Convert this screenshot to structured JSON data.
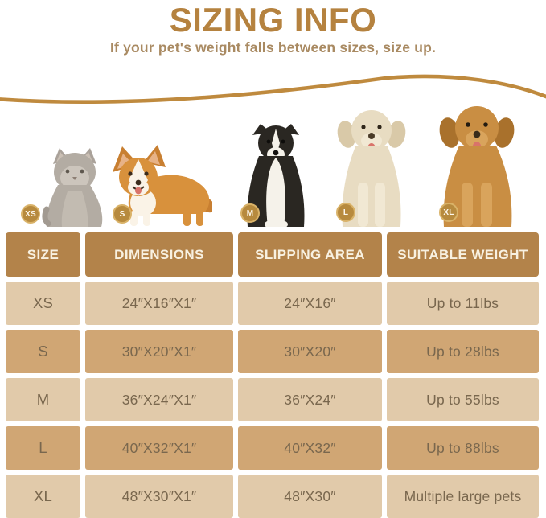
{
  "header": {
    "title": "SIZING INFO",
    "subtitle": "If your pet's weight falls between sizes, size up."
  },
  "colors": {
    "accent_brown": "#b5823f",
    "subtitle_tan": "#a98a62",
    "swoosh": "#bf8a3e",
    "table_header_bg": "#b3834a",
    "row_light_bg": "#e1caaa",
    "row_dark_bg": "#d0a674",
    "row_text": "#79674e",
    "badge_gold": "#b78a3e"
  },
  "animals": [
    {
      "size": "XS",
      "animal": "cat"
    },
    {
      "size": "S",
      "animal": "corgi"
    },
    {
      "size": "M",
      "animal": "border-collie"
    },
    {
      "size": "L",
      "animal": "cream-golden-retriever"
    },
    {
      "size": "XL",
      "animal": "golden-retriever"
    }
  ],
  "table": {
    "columns": [
      "SIZE",
      "DIMENSIONS",
      "SLIPPING AREA",
      "SUITABLE WEIGHT"
    ],
    "rows": [
      [
        "XS",
        "24″X16″X1″",
        "24″X16″",
        "Up to 11lbs"
      ],
      [
        "S",
        "30″X20″X1″",
        "30″X20″",
        "Up to 28lbs"
      ],
      [
        "M",
        "36″X24″X1″",
        "36″X24″",
        "Up to 55lbs"
      ],
      [
        "L",
        "40″X32″X1″",
        "40″X32″",
        "Up to 88lbs"
      ],
      [
        "XL",
        "48″X30″X1″",
        "48″X30″",
        "Multiple large pets"
      ]
    ]
  },
  "chart_data": {
    "type": "table",
    "title": "SIZING INFO",
    "subtitle": "If your pet's weight falls between sizes, size up.",
    "columns": [
      "SIZE",
      "DIMENSIONS",
      "SLIPPING AREA",
      "SUITABLE WEIGHT"
    ],
    "rows": [
      [
        "XS",
        "24″X16″X1″",
        "24″X16″",
        "Up to 11lbs"
      ],
      [
        "S",
        "30″X20″X1″",
        "30″X20″",
        "Up to 28lbs"
      ],
      [
        "M",
        "36″X24″X1″",
        "36″X24″",
        "Up to 55lbs"
      ],
      [
        "L",
        "40″X32″X1″",
        "40″X32″",
        "Up to 88lbs"
      ],
      [
        "XL",
        "48″X30″X1″",
        "48″X30″",
        "Multiple large pets"
      ]
    ]
  }
}
